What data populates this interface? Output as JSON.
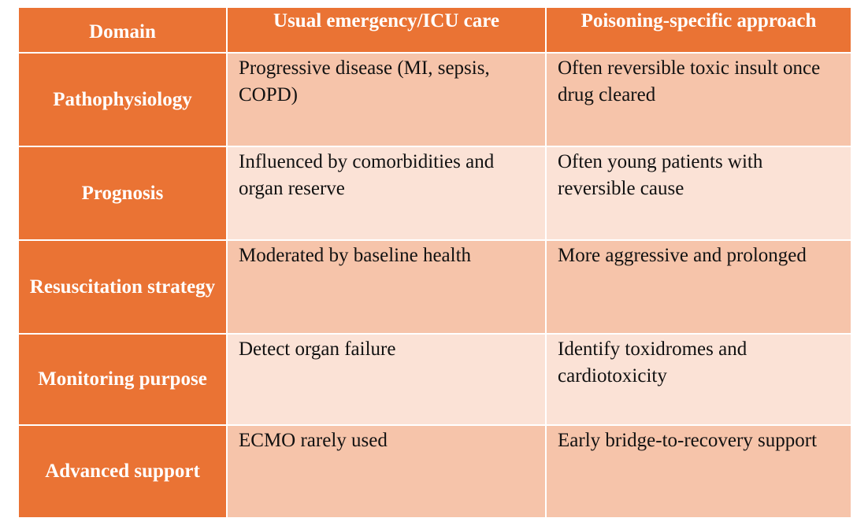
{
  "table": {
    "headers": [
      "Domain",
      "Usual emergency/ICU care",
      "Poisoning-specific approach"
    ],
    "rows": [
      {
        "domain": "Pathophysiology",
        "usual": "Progressive disease (MI, sepsis, COPD)",
        "poisoning": "Often reversible toxic insult once drug cleared"
      },
      {
        "domain": "Prognosis",
        "usual": "Influenced by comorbidities and organ reserve",
        "poisoning": "Often young patients with reversible cause"
      },
      {
        "domain": "Resuscitation strategy",
        "usual": "Moderated by baseline health",
        "poisoning": "More aggressive and prolonged"
      },
      {
        "domain": "Monitoring purpose",
        "usual": "Detect organ failure",
        "poisoning": "Identify toxidromes and cardiotoxicity"
      },
      {
        "domain": "Advanced support",
        "usual": "ECMO rarely used",
        "poisoning": "Early bridge-to-recovery support"
      }
    ]
  },
  "colors": {
    "header_bg": "#ea7334",
    "row_dark": "#f6c4aa",
    "row_light": "#fbe2d6"
  }
}
